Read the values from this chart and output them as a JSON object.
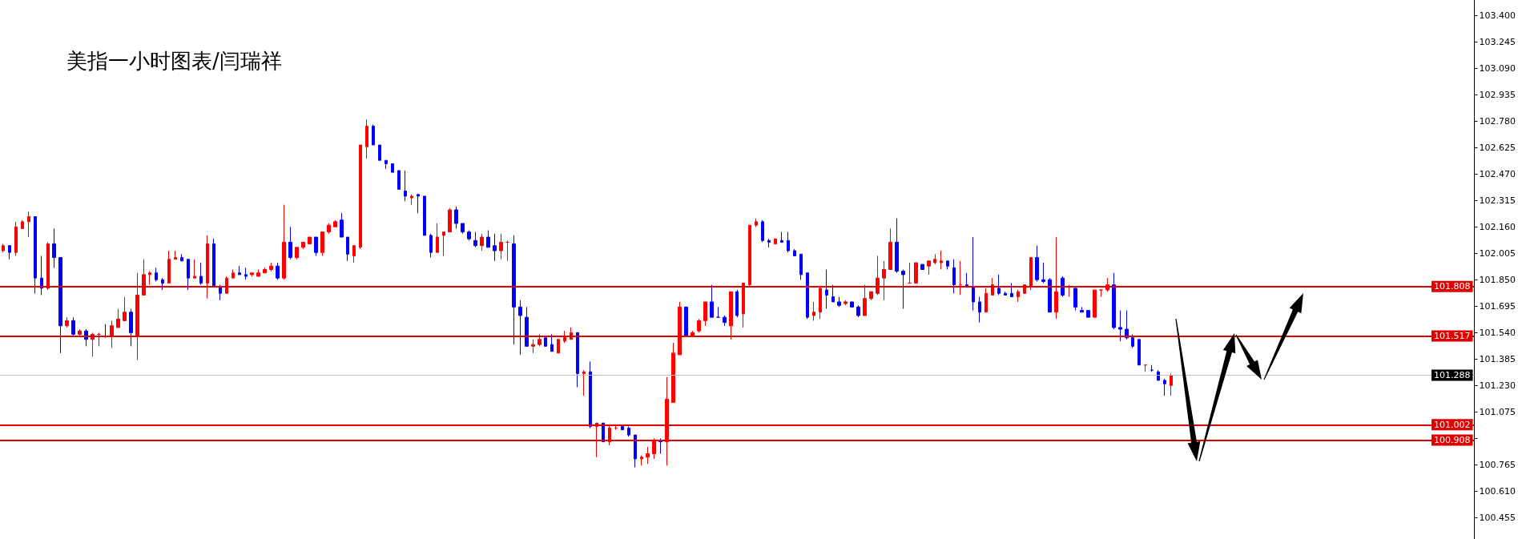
{
  "chart_data": {
    "type": "candlestick",
    "title": "美指一小时图表/闫瑞祥",
    "categories": [
      null,
      null,
      null,
      null,
      null,
      null,
      null,
      null,
      null,
      null,
      null,
      null,
      null,
      null,
      null,
      null,
      null,
      null,
      null,
      null,
      null,
      null,
      null,
      null,
      null,
      null,
      null,
      null,
      null,
      null,
      null,
      null,
      null,
      null,
      null,
      null,
      null,
      null,
      null,
      null,
      null,
      null,
      null,
      null,
      null,
      null,
      null,
      null,
      null,
      null,
      null,
      null,
      null,
      null,
      null,
      null,
      null,
      null,
      null,
      null,
      null,
      null,
      null,
      null,
      null,
      null,
      null,
      null,
      null,
      null,
      null,
      null,
      null,
      null,
      null,
      null,
      null,
      null,
      null,
      null,
      null,
      null,
      null,
      null,
      null,
      null,
      null,
      null,
      null,
      null,
      null,
      null,
      null,
      null,
      null,
      null,
      null,
      null,
      null,
      null,
      null,
      null,
      null,
      null,
      null,
      null,
      null,
      null,
      null,
      null,
      null,
      null,
      null,
      null,
      null,
      null,
      null,
      null,
      null,
      null,
      null,
      null,
      null,
      null,
      null,
      null,
      null,
      null,
      null,
      null,
      null,
      null,
      null,
      null,
      null,
      null,
      null,
      null,
      null,
      null,
      null,
      null,
      null,
      null,
      null,
      null,
      null,
      null,
      null,
      null,
      null,
      null,
      null,
      null,
      null,
      null,
      null,
      null,
      null,
      null,
      null,
      null,
      null,
      null,
      null,
      null,
      null,
      null,
      null,
      null,
      null,
      null,
      null,
      null,
      null,
      null,
      null,
      null,
      null,
      null,
      null,
      null,
      null,
      null,
      null,
      null,
      null,
      null,
      null,
      null,
      null,
      null,
      null,
      null,
      null,
      null,
      null,
      null,
      null,
      null,
      null,
      null,
      null,
      null,
      null,
      null,
      null,
      null,
      null,
      null,
      null,
      null,
      null,
      null,
      null,
      null,
      null,
      null,
      null,
      null,
      null,
      null,
      null,
      null,
      null,
      null,
      null,
      null,
      null,
      null,
      null
    ],
    "ohlc": [
      [
        102.02,
        102.06,
        102.01,
        102.05
      ],
      [
        102.05,
        102.05,
        101.97,
        102.01
      ],
      [
        102.01,
        102.19,
        101.99,
        102.16
      ],
      [
        102.15,
        102.2,
        102.15,
        102.19
      ],
      [
        102.19,
        102.25,
        102.1,
        102.22
      ],
      [
        102.22,
        102.22,
        101.77,
        101.86
      ],
      [
        101.86,
        101.99,
        101.76,
        101.8
      ],
      [
        101.8,
        102.07,
        101.79,
        102.06
      ],
      [
        102.06,
        102.15,
        101.92,
        101.98
      ],
      [
        101.98,
        101.98,
        101.42,
        101.58
      ],
      [
        101.58,
        101.63,
        101.57,
        101.61
      ],
      [
        101.61,
        101.63,
        101.52,
        101.53
      ],
      [
        101.53,
        101.56,
        101.52,
        101.55
      ],
      [
        101.55,
        101.56,
        101.46,
        101.5
      ],
      [
        101.5,
        101.54,
        101.4,
        101.53
      ],
      [
        101.53,
        101.54,
        101.46,
        101.53
      ],
      [
        101.52,
        101.59,
        101.51,
        101.52
      ],
      [
        101.52,
        101.61,
        101.45,
        101.58
      ],
      [
        101.57,
        101.68,
        101.57,
        101.62
      ],
      [
        101.61,
        101.75,
        101.61,
        101.66
      ],
      [
        101.66,
        101.68,
        101.46,
        101.54
      ],
      [
        101.52,
        101.89,
        101.38,
        101.76
      ],
      [
        101.76,
        101.97,
        101.76,
        101.88
      ],
      [
        101.88,
        101.9,
        101.82,
        101.89
      ],
      [
        101.89,
        101.92,
        101.84,
        101.85
      ],
      [
        101.85,
        101.86,
        101.79,
        101.83
      ],
      [
        101.83,
        102.02,
        101.83,
        101.97
      ],
      [
        101.97,
        102.02,
        101.97,
        101.98
      ],
      [
        101.98,
        102.0,
        101.96,
        101.96
      ],
      [
        101.97,
        101.97,
        101.79,
        101.86
      ],
      [
        101.86,
        101.97,
        101.86,
        101.87
      ],
      [
        101.87,
        101.95,
        101.82,
        101.83
      ],
      [
        101.83,
        102.11,
        101.74,
        102.06
      ],
      [
        102.06,
        102.09,
        101.81,
        101.81
      ],
      [
        101.81,
        101.82,
        101.73,
        101.77
      ],
      [
        101.77,
        101.87,
        101.77,
        101.86
      ],
      [
        101.86,
        101.91,
        101.86,
        101.89
      ],
      [
        101.89,
        101.93,
        101.88,
        101.88
      ],
      [
        101.88,
        101.92,
        101.85,
        101.87
      ],
      [
        101.88,
        101.89,
        101.87,
        101.89
      ],
      [
        101.87,
        101.91,
        101.87,
        101.89
      ],
      [
        101.89,
        101.92,
        101.89,
        101.91
      ],
      [
        101.91,
        101.95,
        101.9,
        101.93
      ],
      [
        101.93,
        101.95,
        101.85,
        101.86
      ],
      [
        101.86,
        102.29,
        101.85,
        102.07
      ],
      [
        102.07,
        102.16,
        101.97,
        101.98
      ],
      [
        101.98,
        102.04,
        101.97,
        102.04
      ],
      [
        102.04,
        102.07,
        102.03,
        102.07
      ],
      [
        102.06,
        102.1,
        102.06,
        102.1
      ],
      [
        102.1,
        102.1,
        101.99,
        102.01
      ],
      [
        102.01,
        102.13,
        101.99,
        102.13
      ],
      [
        102.13,
        102.18,
        102.12,
        102.17
      ],
      [
        102.16,
        102.2,
        102.16,
        102.19
      ],
      [
        102.2,
        102.24,
        102.1,
        102.1
      ],
      [
        102.1,
        102.1,
        101.96,
        102.0
      ],
      [
        101.99,
        102.05,
        101.95,
        102.05
      ],
      [
        102.04,
        102.64,
        102.03,
        102.64
      ],
      [
        102.63,
        102.79,
        102.56,
        102.75
      ],
      [
        102.75,
        102.76,
        102.64,
        102.64
      ],
      [
        102.64,
        102.64,
        102.55,
        102.55
      ],
      [
        102.55,
        102.55,
        102.5,
        102.53
      ],
      [
        102.53,
        102.53,
        102.48,
        102.48
      ],
      [
        102.49,
        102.49,
        102.38,
        102.38
      ],
      [
        102.37,
        102.49,
        102.31,
        102.34
      ],
      [
        102.33,
        102.35,
        102.29,
        102.34
      ],
      [
        102.35,
        102.35,
        102.24,
        102.34
      ],
      [
        102.34,
        102.34,
        102.11,
        102.11
      ],
      [
        102.11,
        102.12,
        101.98,
        102.01
      ],
      [
        102.01,
        102.18,
        102.01,
        102.1
      ],
      [
        102.11,
        102.13,
        101.99,
        102.13
      ],
      [
        102.13,
        102.27,
        102.13,
        102.26
      ],
      [
        102.26,
        102.28,
        102.15,
        102.18
      ],
      [
        102.18,
        102.18,
        102.12,
        102.13
      ],
      [
        102.13,
        102.14,
        102.08,
        102.09
      ],
      [
        102.08,
        102.13,
        102.04,
        102.05
      ],
      [
        102.05,
        102.12,
        102.02,
        102.1
      ],
      [
        102.1,
        102.14,
        102.04,
        102.04
      ],
      [
        102.05,
        102.12,
        101.96,
        102.02
      ],
      [
        102.02,
        102.12,
        101.97,
        102.07
      ],
      [
        102.07,
        102.08,
        101.96,
        102.07
      ],
      [
        102.06,
        102.11,
        101.47,
        101.69
      ],
      [
        101.69,
        101.73,
        101.41,
        101.64
      ],
      [
        101.63,
        101.69,
        101.46,
        101.46
      ],
      [
        101.46,
        101.5,
        101.42,
        101.47
      ],
      [
        101.47,
        101.53,
        101.46,
        101.5
      ],
      [
        101.51,
        101.52,
        101.46,
        101.46
      ],
      [
        101.47,
        101.53,
        101.43,
        101.43
      ],
      [
        101.42,
        101.5,
        101.42,
        101.5
      ],
      [
        101.49,
        101.55,
        101.48,
        101.52
      ],
      [
        101.5,
        101.57,
        101.5,
        101.54
      ],
      [
        101.54,
        101.54,
        101.22,
        101.3
      ],
      [
        101.3,
        101.32,
        101.17,
        101.31
      ],
      [
        101.31,
        101.37,
        100.98,
        100.99
      ],
      [
        100.99,
        101.01,
        100.81,
        101.01
      ],
      [
        101.01,
        101.01,
        100.9,
        100.9
      ],
      [
        100.9,
        101.0,
        100.88,
        100.98
      ],
      [
        100.98,
        101.0,
        100.97,
        100.98
      ],
      [
        100.99,
        101.0,
        100.97,
        100.97
      ],
      [
        100.98,
        100.99,
        100.93,
        100.94
      ],
      [
        100.94,
        100.94,
        100.75,
        100.8
      ],
      [
        100.8,
        100.82,
        100.76,
        100.81
      ],
      [
        100.81,
        100.87,
        100.77,
        100.83
      ],
      [
        100.83,
        100.92,
        100.8,
        100.91
      ],
      [
        100.91,
        100.92,
        100.83,
        100.9
      ],
      [
        100.9,
        101.28,
        100.76,
        101.15
      ],
      [
        101.13,
        101.48,
        101.13,
        101.42
      ],
      [
        101.41,
        101.72,
        101.41,
        101.69
      ],
      [
        101.69,
        101.69,
        101.52,
        101.52
      ],
      [
        101.52,
        101.55,
        101.52,
        101.54
      ],
      [
        101.55,
        101.62,
        101.54,
        101.61
      ],
      [
        101.61,
        101.72,
        101.58,
        101.72
      ],
      [
        101.72,
        101.82,
        101.63,
        101.63
      ],
      [
        101.63,
        101.69,
        101.63,
        101.63
      ],
      [
        101.63,
        101.64,
        101.58,
        101.6
      ],
      [
        101.58,
        101.78,
        101.5,
        101.78
      ],
      [
        101.78,
        101.79,
        101.63,
        101.64
      ],
      [
        101.65,
        101.83,
        101.57,
        101.83
      ],
      [
        101.82,
        102.17,
        101.81,
        102.17
      ],
      [
        102.17,
        102.21,
        102.16,
        102.19
      ],
      [
        102.19,
        102.2,
        102.07,
        102.08
      ],
      [
        102.08,
        102.09,
        102.04,
        102.07
      ],
      [
        102.06,
        102.09,
        102.06,
        102.09
      ],
      [
        102.08,
        102.13,
        102.07,
        102.07
      ],
      [
        102.08,
        102.13,
        102.01,
        102.02
      ],
      [
        102.02,
        102.03,
        101.99,
        101.99
      ],
      [
        102.0,
        102.0,
        101.85,
        101.88
      ],
      [
        101.89,
        101.89,
        101.62,
        101.63
      ],
      [
        101.64,
        101.72,
        101.61,
        101.66
      ],
      [
        101.66,
        101.81,
        101.62,
        101.8
      ],
      [
        101.79,
        101.91,
        101.68,
        101.76
      ],
      [
        101.75,
        101.82,
        101.72,
        101.72
      ],
      [
        101.72,
        101.75,
        101.69,
        101.7
      ],
      [
        101.71,
        101.73,
        101.7,
        101.72
      ],
      [
        101.72,
        101.72,
        101.69,
        101.69
      ],
      [
        101.69,
        101.7,
        101.63,
        101.64
      ],
      [
        101.64,
        101.82,
        101.64,
        101.74
      ],
      [
        101.74,
        101.78,
        101.73,
        101.78
      ],
      [
        101.77,
        101.99,
        101.76,
        101.86
      ],
      [
        101.86,
        101.96,
        101.73,
        101.91
      ],
      [
        101.91,
        102.15,
        101.91,
        102.07
      ],
      [
        102.07,
        102.21,
        101.89,
        101.9
      ],
      [
        101.9,
        101.91,
        101.68,
        101.88
      ],
      [
        101.83,
        101.95,
        101.83,
        101.83
      ],
      [
        101.83,
        101.95,
        101.83,
        101.95
      ],
      [
        101.94,
        101.94,
        101.91,
        101.91
      ],
      [
        101.93,
        101.96,
        101.88,
        101.96
      ],
      [
        101.95,
        102.0,
        101.94,
        101.97
      ],
      [
        101.95,
        102.02,
        101.91,
        101.96
      ],
      [
        101.96,
        101.96,
        101.91,
        101.93
      ],
      [
        101.92,
        101.97,
        101.77,
        101.82
      ],
      [
        101.82,
        101.96,
        101.76,
        101.82
      ],
      [
        101.82,
        101.89,
        101.81,
        101.81
      ],
      [
        101.81,
        102.1,
        101.67,
        101.72
      ],
      [
        101.72,
        101.75,
        101.6,
        101.66
      ],
      [
        101.66,
        101.8,
        101.66,
        101.77
      ],
      [
        101.76,
        101.86,
        101.76,
        101.82
      ],
      [
        101.8,
        101.88,
        101.76,
        101.77
      ],
      [
        101.77,
        101.78,
        101.76,
        101.76
      ],
      [
        101.77,
        101.83,
        101.75,
        101.75
      ],
      [
        101.75,
        101.79,
        101.72,
        101.78
      ],
      [
        101.77,
        101.82,
        101.77,
        101.82
      ],
      [
        101.81,
        101.98,
        101.79,
        101.98
      ],
      [
        101.98,
        102.05,
        101.84,
        101.85
      ],
      [
        101.85,
        101.95,
        101.83,
        101.84
      ],
      [
        101.85,
        101.86,
        101.66,
        101.66
      ],
      [
        101.66,
        102.1,
        101.62,
        101.78
      ],
      [
        101.86,
        101.87,
        101.75,
        101.76
      ],
      [
        101.81,
        101.82,
        101.75,
        101.81
      ],
      [
        101.8,
        101.8,
        101.67,
        101.69
      ],
      [
        101.67,
        101.69,
        101.66,
        101.66
      ],
      [
        101.67,
        101.67,
        101.63,
        101.63
      ],
      [
        101.63,
        101.79,
        101.63,
        101.79
      ],
      [
        101.79,
        101.79,
        101.75,
        101.79
      ],
      [
        101.79,
        101.86,
        101.78,
        101.82
      ],
      [
        101.82,
        101.89,
        101.56,
        101.57
      ],
      [
        101.57,
        101.67,
        101.49,
        101.56
      ],
      [
        101.56,
        101.67,
        101.5,
        101.51
      ],
      [
        101.51,
        101.53,
        101.45,
        101.46
      ],
      [
        101.5,
        101.5,
        101.35,
        101.35
      ],
      [
        101.35,
        101.35,
        101.31,
        101.35
      ],
      [
        101.32,
        101.35,
        101.31,
        101.32
      ],
      [
        101.31,
        101.32,
        101.26,
        101.26
      ],
      [
        101.26,
        101.27,
        101.17,
        101.24
      ],
      [
        101.23,
        101.3,
        101.17,
        101.29
      ],
      null,
      null,
      null,
      null,
      null,
      null,
      null,
      null,
      null,
      null,
      null,
      null,
      null,
      null,
      null,
      null,
      null,
      null,
      null,
      null,
      null,
      null,
      null,
      null,
      null,
      null,
      null,
      null,
      null,
      null,
      null,
      null,
      null,
      null,
      null,
      null,
      null,
      null,
      null,
      null,
      null,
      null,
      null,
      null,
      null,
      null,
      null
    ],
    "colors": [
      "#ff0000",
      "#0000ff",
      "#ff0000",
      "#ff0000",
      "#ff0000",
      "#0000ff",
      "#0000ff",
      "#ff0000",
      "#0000ff",
      "#0000ff",
      "#ff0000",
      "#0000ff",
      "#ff0000",
      "#0000ff",
      "#ff0000",
      "#ff0000",
      "#0000ff",
      "#ff0000",
      "#ff0000",
      "#ff0000",
      "#0000ff",
      "#ff0000",
      "#ff0000",
      "#ff0000",
      "#0000ff",
      "#0000ff",
      "#ff0000",
      "#ff0000",
      "#0000ff",
      "#0000ff",
      "#ff0000",
      "#0000ff",
      "#ff0000",
      "#0000ff",
      "#0000ff",
      "#ff0000",
      "#ff0000",
      "#0000ff",
      "#0000ff",
      "#ff0000",
      "#ff0000",
      "#ff0000",
      "#ff0000",
      "#0000ff",
      "#ff0000",
      "#0000ff",
      "#ff0000",
      "#ff0000",
      "#ff0000",
      "#0000ff",
      "#ff0000",
      "#ff0000",
      "#ff0000",
      "#0000ff",
      "#0000ff",
      "#ff0000",
      "#ff0000",
      "#ff0000",
      "#0000ff",
      "#0000ff",
      "#0000ff",
      "#0000ff",
      "#0000ff",
      "#0000ff",
      "#ff0000",
      "#0000ff",
      "#0000ff",
      "#0000ff",
      "#ff0000",
      "#ff0000",
      "#ff0000",
      "#0000ff",
      "#0000ff",
      "#0000ff",
      "#0000ff",
      "#ff0000",
      "#0000ff",
      "#0000ff",
      "#ff0000",
      "#ff0000",
      "#0000ff",
      "#0000ff",
      "#0000ff",
      "#ff0000",
      "#ff0000",
      "#0000ff",
      "#0000ff",
      "#ff0000",
      "#ff0000",
      "#ff0000",
      "#0000ff",
      "#ff0000",
      "#0000ff",
      "#ff0000",
      "#0000ff",
      "#ff0000",
      "#ff0000",
      "#0000ff",
      "#0000ff",
      "#0000ff",
      "#ff0000",
      "#ff0000",
      "#ff0000",
      "#0000ff",
      "#ff0000",
      "#ff0000",
      "#ff0000",
      "#0000ff",
      "#ff0000",
      "#ff0000",
      "#ff0000",
      "#0000ff",
      "#0000ff",
      "#0000ff",
      "#ff0000",
      "#0000ff",
      "#ff0000",
      "#ff0000",
      "#ff0000",
      "#0000ff",
      "#0000ff",
      "#ff0000",
      "#0000ff",
      "#0000ff",
      "#0000ff",
      "#0000ff",
      "#0000ff",
      "#ff0000",
      "#ff0000",
      "#0000ff",
      "#0000ff",
      "#0000ff",
      "#ff0000",
      "#0000ff",
      "#0000ff",
      "#ff0000",
      "#ff0000",
      "#ff0000",
      "#ff0000",
      "#ff0000",
      "#0000ff",
      "#0000ff",
      "#ff0000",
      "#ff0000",
      "#0000ff",
      "#ff0000",
      "#ff0000",
      "#ff0000",
      "#0000ff",
      "#0000ff",
      "#ff0000",
      "#0000ff",
      "#0000ff",
      "#0000ff",
      "#ff0000",
      "#ff0000",
      "#0000ff",
      "#0000ff",
      "#0000ff",
      "#ff0000",
      "#ff0000",
      "#ff0000",
      "#0000ff",
      "#0000ff",
      "#0000ff",
      "#ff0000",
      "#0000ff",
      "#ff0000",
      "#0000ff",
      "#0000ff",
      "#0000ff",
      "#ff0000",
      "#ff0000",
      "#ff0000",
      "#0000ff",
      "#0000ff",
      "#0000ff",
      "#0000ff",
      "#0000ff",
      "#ff0000",
      "#0000ff",
      "#0000ff",
      "#0000ff",
      "#ff0000",
      null,
      null,
      null,
      null,
      null,
      null,
      null,
      null,
      null,
      null,
      null,
      null,
      null,
      null,
      null,
      null,
      null,
      null,
      null,
      null,
      null,
      null,
      null,
      null,
      null,
      null,
      null,
      null,
      null,
      null,
      null,
      null,
      null,
      null,
      null,
      null,
      null,
      null,
      null,
      null,
      null,
      null,
      null,
      null,
      null,
      null,
      null
    ],
    "ylim": [
      100.33,
      103.49
    ],
    "yticks": [
      {
        "value": 100.455,
        "label": "100.455"
      },
      {
        "value": 100.61,
        "label": "100.610"
      },
      {
        "value": 100.765,
        "label": "100.765"
      },
      {
        "value": 100.92,
        "label": null
      },
      {
        "value": 101.075,
        "label": "101.075"
      },
      {
        "value": 101.23,
        "label": "101.230"
      },
      {
        "value": 101.385,
        "label": "101.385"
      },
      {
        "value": 101.54,
        "label": "101.540"
      },
      {
        "value": 101.695,
        "label": "101.695"
      },
      {
        "value": 101.85,
        "label": "101.850"
      },
      {
        "value": 102.005,
        "label": "102.005"
      },
      {
        "value": 102.16,
        "label": "102.160"
      },
      {
        "value": 102.315,
        "label": "102.315"
      },
      {
        "value": 102.47,
        "label": "102.470"
      },
      {
        "value": 102.625,
        "label": "102.625"
      },
      {
        "value": 102.78,
        "label": "102.780"
      },
      {
        "value": 102.935,
        "label": "102.935"
      },
      {
        "value": 103.09,
        "label": "103.090"
      },
      {
        "value": 103.245,
        "label": "103.245"
      },
      {
        "value": 103.4,
        "label": "103.400"
      }
    ],
    "ref_lines": [
      {
        "axis": "y",
        "value": 101.808,
        "label": "101.808",
        "color": "#e00000"
      },
      {
        "axis": "y",
        "value": 101.517,
        "label": "101.517",
        "color": "#e00000"
      },
      {
        "axis": "y",
        "value": 101.288,
        "label": "101.288",
        "color": "#c0c0c0"
      },
      {
        "axis": "y",
        "value": 101.002,
        "label": "101.002",
        "color": "#e00000"
      },
      {
        "axis": "y",
        "value": 100.908,
        "label": "100.908",
        "color": "#e00000"
      }
    ],
    "tick_labels": "y"
  }
}
